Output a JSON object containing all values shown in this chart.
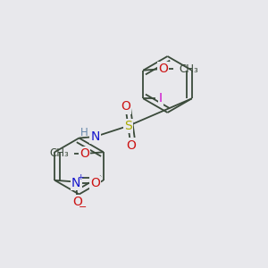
{
  "bg_color": "#e8e8ec",
  "bond_color": "#3a4a3a",
  "bond_width": 1.3,
  "dbo": 0.018,
  "colors": {
    "C": "#3a4a3a",
    "N": "#1414cc",
    "O": "#cc1414",
    "S": "#aaaa00",
    "I": "#cc00cc",
    "H": "#6688aa"
  },
  "fs": 10,
  "fss": 8.5
}
